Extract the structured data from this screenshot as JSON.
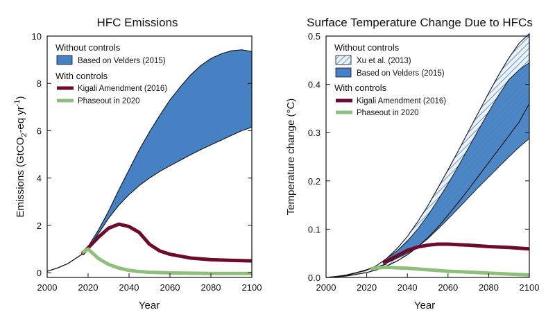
{
  "colors": {
    "band": "#4581c3",
    "band_stroke": "#111111",
    "hatch_fill": "#eaf2fa",
    "hatch_line": "#4a7ab0",
    "kigali": "#6e0a2e",
    "phaseout": "#8ec07c",
    "axis": "#111111"
  },
  "chart_data": [
    {
      "type": "area",
      "title": "HFC Emissions",
      "xlabel": "Year",
      "ylabel_main": "Emissions (GtCO",
      "ylabel_sub": "2",
      "ylabel_mid": "-eq yr",
      "ylabel_sup": "-1",
      "ylabel_end": ")",
      "xlim": [
        2000,
        2100
      ],
      "ylim": [
        -0.2,
        10
      ],
      "xticks": [
        2000,
        2020,
        2040,
        2060,
        2080,
        2100
      ],
      "yticks": [
        0,
        2,
        4,
        6,
        8,
        10
      ],
      "xtick_labels": [
        "2000",
        "2020",
        "2040",
        "2060",
        "2080",
        "2100"
      ],
      "ytick_labels": [
        "0",
        "2",
        "4",
        "6",
        "8",
        "10"
      ],
      "legend": {
        "without_header": "Without controls",
        "with_header": "With controls",
        "band_label": "Based on Velders (2015)",
        "kigali_label": "Kigali Amendment (2016)",
        "phaseout_label": "Phaseout in 2020"
      },
      "historical": {
        "x": [
          2000,
          2005,
          2010,
          2013,
          2016,
          2018
        ],
        "y": [
          0.06,
          0.2,
          0.38,
          0.55,
          0.72,
          0.85
        ]
      },
      "band_upper": {
        "x": [
          2018,
          2020,
          2025,
          2030,
          2035,
          2040,
          2045,
          2050,
          2055,
          2060,
          2065,
          2070,
          2075,
          2080,
          2085,
          2090,
          2095,
          2100
        ],
        "y": [
          0.9,
          1.1,
          1.8,
          2.6,
          3.5,
          4.35,
          5.2,
          5.95,
          6.65,
          7.3,
          7.85,
          8.35,
          8.75,
          9.05,
          9.25,
          9.38,
          9.42,
          9.35
        ]
      },
      "band_lower": {
        "x": [
          2018,
          2020,
          2025,
          2030,
          2035,
          2040,
          2045,
          2050,
          2055,
          2060,
          2065,
          2070,
          2075,
          2080,
          2085,
          2090,
          2095,
          2100
        ],
        "y": [
          0.9,
          1.05,
          1.65,
          2.3,
          2.85,
          3.3,
          3.68,
          4.0,
          4.28,
          4.52,
          4.75,
          4.98,
          5.2,
          5.4,
          5.6,
          5.8,
          6.0,
          6.15
        ]
      },
      "kigali": {
        "x": [
          2017,
          2020,
          2025,
          2030,
          2035,
          2040,
          2045,
          2050,
          2055,
          2060,
          2070,
          2080,
          2090,
          2100
        ],
        "y": [
          0.78,
          1.05,
          1.5,
          1.88,
          2.05,
          1.95,
          1.7,
          1.2,
          0.92,
          0.78,
          0.62,
          0.55,
          0.52,
          0.5
        ]
      },
      "phaseout": {
        "x": [
          2017,
          2020,
          2025,
          2030,
          2035,
          2040,
          2045,
          2050,
          2060,
          2070,
          2080,
          2090,
          2100
        ],
        "y": [
          0.85,
          1.0,
          0.6,
          0.35,
          0.2,
          0.1,
          0.05,
          0.02,
          -0.01,
          -0.02,
          -0.03,
          -0.03,
          -0.03
        ]
      }
    },
    {
      "type": "area",
      "title": "Surface Temperature Change Due to HFCs",
      "xlabel": "Year",
      "ylabel": "Temperature change (°C)",
      "xlim": [
        2000,
        2100
      ],
      "ylim": [
        0,
        0.5
      ],
      "xticks": [
        2000,
        2020,
        2040,
        2060,
        2080,
        2100
      ],
      "yticks": [
        0,
        0.1,
        0.2,
        0.3,
        0.4,
        0.5
      ],
      "xtick_labels": [
        "2000",
        "2020",
        "2040",
        "2060",
        "2080",
        "2100"
      ],
      "ytick_labels": [
        "0.0",
        "0.1",
        "0.2",
        "0.3",
        "0.4",
        "0.5"
      ],
      "legend": {
        "without_header": "Without controls",
        "with_header": "With controls",
        "hatch_label": "Xu et al. (2013)",
        "band_label": "Based on Velders (2015)",
        "kigali_label": "Kigali Amendment (2016)",
        "phaseout_label": "Phaseout in 2020"
      },
      "historical": {
        "x": [
          2000,
          2005,
          2010,
          2015,
          2020,
          2025,
          2030
        ],
        "y": [
          0.0,
          0.002,
          0.005,
          0.01,
          0.016,
          0.022,
          0.028
        ]
      },
      "xu_upper": {
        "x": [
          2000,
          2010,
          2020,
          2025,
          2030,
          2035,
          2040,
          2045,
          2050,
          2055,
          2060,
          2065,
          2070,
          2075,
          2080,
          2085,
          2090,
          2095,
          2100
        ],
        "y": [
          0.0,
          0.004,
          0.015,
          0.025,
          0.04,
          0.06,
          0.085,
          0.115,
          0.148,
          0.185,
          0.223,
          0.262,
          0.302,
          0.342,
          0.382,
          0.42,
          0.455,
          0.485,
          0.505
        ]
      },
      "xu_lower": {
        "x": [
          2000,
          2010,
          2020,
          2025,
          2030,
          2035,
          2040,
          2045,
          2050,
          2055,
          2060,
          2065,
          2070,
          2075,
          2080,
          2085,
          2090,
          2095,
          2100
        ],
        "y": [
          0.0,
          0.003,
          0.01,
          0.016,
          0.024,
          0.034,
          0.047,
          0.063,
          0.082,
          0.104,
          0.129,
          0.155,
          0.182,
          0.21,
          0.238,
          0.266,
          0.294,
          0.322,
          0.36
        ]
      },
      "velders_upper": {
        "x": [
          2030,
          2035,
          2040,
          2045,
          2050,
          2055,
          2060,
          2065,
          2070,
          2075,
          2080,
          2085,
          2090,
          2095,
          2100
        ],
        "y": [
          0.04,
          0.055,
          0.075,
          0.1,
          0.128,
          0.16,
          0.194,
          0.23,
          0.268,
          0.306,
          0.343,
          0.378,
          0.41,
          0.43,
          0.445
        ]
      },
      "velders_lower": {
        "x": [
          2030,
          2035,
          2040,
          2045,
          2050,
          2055,
          2060,
          2065,
          2070,
          2075,
          2080,
          2085,
          2090,
          2095,
          2100
        ],
        "y": [
          0.03,
          0.04,
          0.05,
          0.063,
          0.08,
          0.1,
          0.121,
          0.143,
          0.165,
          0.187,
          0.208,
          0.229,
          0.25,
          0.27,
          0.288
        ]
      },
      "kigali": {
        "x": [
          2028,
          2035,
          2040,
          2045,
          2050,
          2055,
          2060,
          2065,
          2070,
          2080,
          2090,
          2100
        ],
        "y": [
          0.03,
          0.045,
          0.056,
          0.063,
          0.067,
          0.069,
          0.069,
          0.068,
          0.067,
          0.064,
          0.062,
          0.059
        ]
      },
      "phaseout": {
        "x": [
          2022,
          2025,
          2030,
          2035,
          2040,
          2050,
          2060,
          2070,
          2080,
          2090,
          2100
        ],
        "y": [
          0.018,
          0.02,
          0.021,
          0.02,
          0.019,
          0.016,
          0.013,
          0.011,
          0.009,
          0.007,
          0.005
        ]
      }
    }
  ]
}
